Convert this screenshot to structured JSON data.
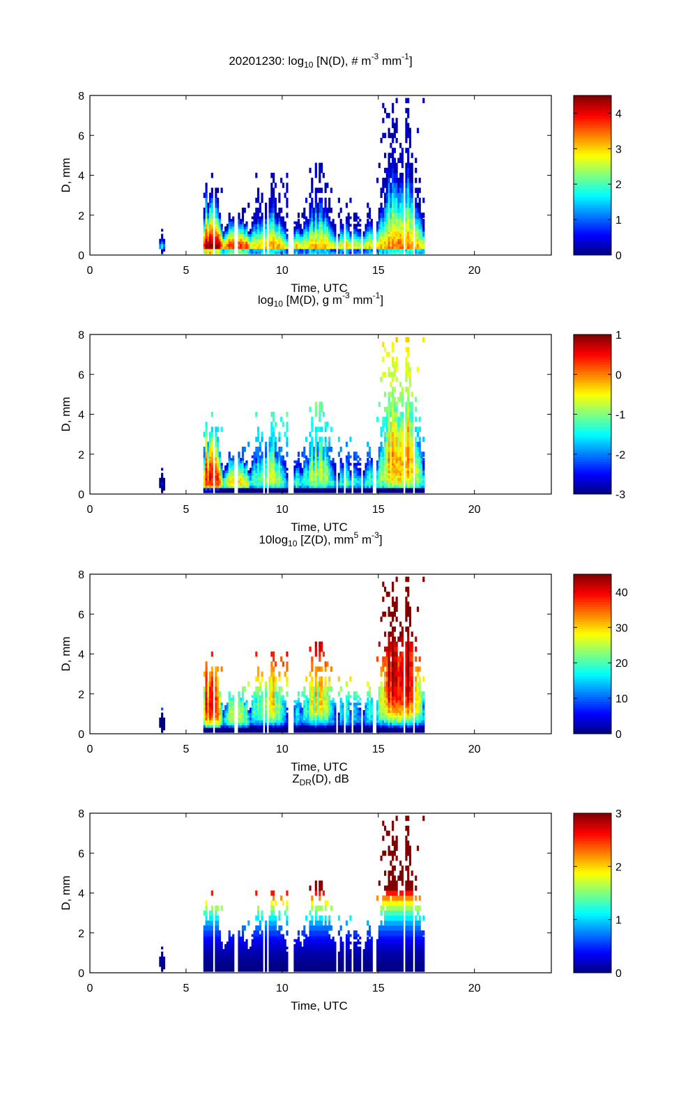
{
  "chart_data": [
    {
      "type": "heatmap",
      "id": "nd",
      "title_parts": {
        "pre": "20201230: log",
        "sub": "10",
        "mid": " [N(D), # m",
        "sup1": "-3",
        "mid2": " mm",
        "sup2": "-1",
        "post": "]"
      },
      "title": "20201230: log10 [N(D), # m^-3 mm^-1]",
      "xlabel": "Time, UTC",
      "ylabel": "D, mm",
      "xlim": [
        0,
        24
      ],
      "ylim": [
        0,
        8
      ],
      "xticks": [
        0,
        5,
        10,
        15,
        20
      ],
      "yticks": [
        0,
        2,
        4,
        6,
        8
      ],
      "colorbar": {
        "clim": [
          0,
          4.5
        ],
        "ticks": [
          0,
          1,
          2,
          3,
          4
        ],
        "colormap": "jet"
      },
      "field": "number"
    },
    {
      "type": "heatmap",
      "id": "md",
      "title_parts": {
        "pre": "log",
        "sub": "10",
        "mid": " [M(D), g m",
        "sup1": "-3",
        "mid2": " mm",
        "sup2": "-1",
        "post": "]"
      },
      "title": "log10 [M(D), g m^-3 mm^-1]",
      "xlabel": "Time, UTC",
      "ylabel": "D, mm",
      "xlim": [
        0,
        24
      ],
      "ylim": [
        0,
        8
      ],
      "xticks": [
        0,
        5,
        10,
        15,
        20
      ],
      "yticks": [
        0,
        2,
        4,
        6,
        8
      ],
      "colorbar": {
        "clim": [
          -3,
          1
        ],
        "ticks": [
          -3,
          -2,
          -1,
          0,
          1
        ],
        "colormap": "jet"
      },
      "field": "mass"
    },
    {
      "type": "heatmap",
      "id": "zd",
      "title_parts": {
        "pre": "10log",
        "sub": "10",
        "mid": " [Z(D),  mm",
        "sup1": "5",
        "mid2": " m",
        "sup2": "-3",
        "post": "]"
      },
      "title": "10log10 [Z(D), mm^5 m^-3]",
      "xlabel": "Time, UTC",
      "ylabel": "D, mm",
      "xlim": [
        0,
        24
      ],
      "ylim": [
        0,
        8
      ],
      "xticks": [
        0,
        5,
        10,
        15,
        20
      ],
      "yticks": [
        0,
        2,
        4,
        6,
        8
      ],
      "colorbar": {
        "clim": [
          0,
          45
        ],
        "ticks": [
          0,
          10,
          20,
          30,
          40
        ],
        "colormap": "jet"
      },
      "field": "reflectivity"
    },
    {
      "type": "heatmap",
      "id": "zdr",
      "title_parts": {
        "pre": "Z",
        "sub": "DR",
        "mid": "(D), dB",
        "sup1": "",
        "mid2": "",
        "sup2": "",
        "post": ""
      },
      "title": "ZDR(D), dB",
      "xlabel": "Time, UTC",
      "ylabel": "D, mm",
      "xlim": [
        0,
        24
      ],
      "ylim": [
        0,
        8
      ],
      "xticks": [
        0,
        5,
        10,
        15,
        20
      ],
      "yticks": [
        0,
        2,
        4,
        6,
        8
      ],
      "colorbar": {
        "clim": [
          0,
          3
        ],
        "ticks": [
          0,
          1,
          2,
          3
        ],
        "colormap": "jet"
      },
      "field": "zdr"
    }
  ],
  "episodes": [
    {
      "t_start": 3.65,
      "t_end": 3.85,
      "dmax": 1.3,
      "log_n_peak": 1.5
    },
    {
      "t_start": 5.8,
      "t_end": 6.9,
      "dmax": 4.4,
      "log_n_peak": 4.5
    },
    {
      "t_start": 6.9,
      "t_end": 8.3,
      "dmax": 2.6,
      "log_n_peak": 3.9
    },
    {
      "t_start": 8.3,
      "t_end": 10.3,
      "dmax": 4.2,
      "log_n_peak": 3.3
    },
    {
      "t_start": 10.6,
      "t_end": 11.0,
      "dmax": 2.2,
      "log_n_peak": 3.0
    },
    {
      "t_start": 11.0,
      "t_end": 12.8,
      "dmax": 4.4,
      "log_n_peak": 3.2
    },
    {
      "t_start": 12.9,
      "t_end": 13.6,
      "dmax": 2.8,
      "log_n_peak": 2.9
    },
    {
      "t_start": 13.6,
      "t_end": 14.1,
      "dmax": 2.2,
      "log_n_peak": 2.8
    },
    {
      "t_start": 14.2,
      "t_end": 14.8,
      "dmax": 2.6,
      "log_n_peak": 2.9
    },
    {
      "t_start": 14.9,
      "t_end": 17.4,
      "dmax": 7.8,
      "log_n_peak": 3.4
    }
  ]
}
